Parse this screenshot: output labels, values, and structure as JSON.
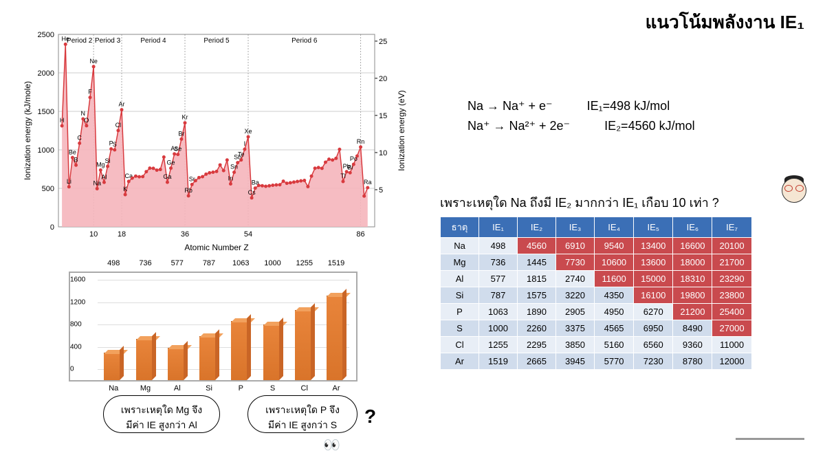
{
  "title": "แนวโน้มพลังงาน IE₁",
  "equations": {
    "row1_left": "Na → Na⁺ + e⁻",
    "row1_right": "IE₁=498 kJ/mol",
    "row2_left": "Na⁺ → Na²⁺ + 2e⁻",
    "row2_right": "IE₂=4560 kJ/mol"
  },
  "question": "เพราะเหตุใด Na ถึงมี IE₂  มากกว่า IE₁ เกือบ 10 เท่า ?",
  "linechart": {
    "type": "line-area",
    "xlabel": "Atomic Number Z",
    "ylabel_left": "Ionization energy (kJ/mole)",
    "ylabel_right": "Ionization energy (eV)",
    "x_ticks": [
      10,
      18,
      36,
      54,
      86
    ],
    "y_ticks_left": [
      0,
      500,
      1000,
      1500,
      2000,
      2500
    ],
    "y_ticks_right": [
      5,
      10,
      15,
      20,
      25
    ],
    "ylim_left": [
      0,
      2500
    ],
    "xlim": [
      0,
      90
    ],
    "period_labels": [
      {
        "text": "Period 2",
        "x": 6
      },
      {
        "text": "Period 3",
        "x": 14
      },
      {
        "text": "Period 4",
        "x": 27
      },
      {
        "text": "Period 5",
        "x": 45
      },
      {
        "text": "Period 6",
        "x": 70
      }
    ],
    "period_dividers": [
      10,
      18,
      36,
      54,
      86
    ],
    "fill_color": "#f5b5bb",
    "line_color": "#d83a3e",
    "marker_color": "#d83a3e",
    "grid_color": "#cccccc",
    "points": [
      {
        "z": 1,
        "ie": 1312,
        "label": "H"
      },
      {
        "z": 2,
        "ie": 2372,
        "label": "He"
      },
      {
        "z": 3,
        "ie": 520,
        "label": "Li"
      },
      {
        "z": 4,
        "ie": 899,
        "label": "Be"
      },
      {
        "z": 5,
        "ie": 801,
        "label": "B"
      },
      {
        "z": 6,
        "ie": 1086,
        "label": "C"
      },
      {
        "z": 7,
        "ie": 1402,
        "label": "N"
      },
      {
        "z": 8,
        "ie": 1314,
        "label": "O"
      },
      {
        "z": 9,
        "ie": 1681,
        "label": "F"
      },
      {
        "z": 10,
        "ie": 2081,
        "label": "Ne"
      },
      {
        "z": 11,
        "ie": 496,
        "label": "Na"
      },
      {
        "z": 12,
        "ie": 738,
        "label": "Mg"
      },
      {
        "z": 13,
        "ie": 578,
        "label": "Al"
      },
      {
        "z": 14,
        "ie": 786,
        "label": "Si"
      },
      {
        "z": 15,
        "ie": 1012,
        "label": "P"
      },
      {
        "z": 16,
        "ie": 1000,
        "label": "S"
      },
      {
        "z": 17,
        "ie": 1251,
        "label": "Cl"
      },
      {
        "z": 18,
        "ie": 1521,
        "label": "Ar"
      },
      {
        "z": 19,
        "ie": 419,
        "label": "K"
      },
      {
        "z": 20,
        "ie": 590,
        "label": "Ca"
      },
      {
        "z": 21,
        "ie": 633
      },
      {
        "z": 22,
        "ie": 659
      },
      {
        "z": 23,
        "ie": 651
      },
      {
        "z": 24,
        "ie": 653
      },
      {
        "z": 25,
        "ie": 717
      },
      {
        "z": 26,
        "ie": 762
      },
      {
        "z": 27,
        "ie": 760
      },
      {
        "z": 28,
        "ie": 737
      },
      {
        "z": 29,
        "ie": 745
      },
      {
        "z": 30,
        "ie": 906
      },
      {
        "z": 31,
        "ie": 579,
        "label": "Ga"
      },
      {
        "z": 32,
        "ie": 762,
        "label": "Ge"
      },
      {
        "z": 33,
        "ie": 947,
        "label": "As"
      },
      {
        "z": 34,
        "ie": 941,
        "label": "Se"
      },
      {
        "z": 35,
        "ie": 1140,
        "label": "Br"
      },
      {
        "z": 36,
        "ie": 1351,
        "label": "Kr"
      },
      {
        "z": 37,
        "ie": 403,
        "label": "Rb"
      },
      {
        "z": 38,
        "ie": 550,
        "label": "Sr"
      },
      {
        "z": 39,
        "ie": 600
      },
      {
        "z": 40,
        "ie": 640
      },
      {
        "z": 41,
        "ie": 652
      },
      {
        "z": 42,
        "ie": 684
      },
      {
        "z": 43,
        "ie": 702
      },
      {
        "z": 44,
        "ie": 710
      },
      {
        "z": 45,
        "ie": 720
      },
      {
        "z": 46,
        "ie": 804
      },
      {
        "z": 47,
        "ie": 731
      },
      {
        "z": 48,
        "ie": 868
      },
      {
        "z": 49,
        "ie": 558,
        "label": "In"
      },
      {
        "z": 50,
        "ie": 709,
        "label": "Sn"
      },
      {
        "z": 51,
        "ie": 834,
        "label": "Sb"
      },
      {
        "z": 52,
        "ie": 869,
        "label": "Te"
      },
      {
        "z": 53,
        "ie": 1008,
        "label": "I"
      },
      {
        "z": 54,
        "ie": 1170,
        "label": "Xe"
      },
      {
        "z": 55,
        "ie": 376,
        "label": "Cs"
      },
      {
        "z": 56,
        "ie": 503,
        "label": "Ba"
      },
      {
        "z": 57,
        "ie": 538
      },
      {
        "z": 58,
        "ie": 534
      },
      {
        "z": 59,
        "ie": 527
      },
      {
        "z": 60,
        "ie": 533
      },
      {
        "z": 61,
        "ie": 540
      },
      {
        "z": 62,
        "ie": 545
      },
      {
        "z": 63,
        "ie": 547
      },
      {
        "z": 64,
        "ie": 593
      },
      {
        "z": 65,
        "ie": 566
      },
      {
        "z": 66,
        "ie": 573
      },
      {
        "z": 67,
        "ie": 581
      },
      {
        "z": 68,
        "ie": 589
      },
      {
        "z": 69,
        "ie": 597
      },
      {
        "z": 70,
        "ie": 603
      },
      {
        "z": 71,
        "ie": 523
      },
      {
        "z": 72,
        "ie": 659
      },
      {
        "z": 73,
        "ie": 761
      },
      {
        "z": 74,
        "ie": 770
      },
      {
        "z": 75,
        "ie": 760
      },
      {
        "z": 76,
        "ie": 839
      },
      {
        "z": 77,
        "ie": 878
      },
      {
        "z": 78,
        "ie": 868
      },
      {
        "z": 79,
        "ie": 890
      },
      {
        "z": 80,
        "ie": 1007
      },
      {
        "z": 81,
        "ie": 589,
        "label": "Tl"
      },
      {
        "z": 82,
        "ie": 716,
        "label": "Pb"
      },
      {
        "z": 83,
        "ie": 703,
        "label": "Bi"
      },
      {
        "z": 84,
        "ie": 812,
        "label": "Po"
      },
      {
        "z": 85,
        "ie": 920
      },
      {
        "z": 86,
        "ie": 1037,
        "label": "Rn"
      },
      {
        "z": 87,
        "ie": 400
      },
      {
        "z": 88,
        "ie": 509,
        "label": "Ra"
      }
    ],
    "labeled_only": [
      "H",
      "He",
      "Li",
      "Be",
      "B",
      "C",
      "N",
      "O",
      "F",
      "Ne",
      "Na",
      "Mg",
      "Al",
      "Si",
      "P",
      "S",
      "Cl",
      "Ar",
      "K",
      "Ca",
      "Ga",
      "Ge",
      "As",
      "Se",
      "Br",
      "Kr",
      "Rb",
      "Sr",
      "In",
      "Sn",
      "Sb",
      "Te",
      "I",
      "Xe",
      "Cs",
      "Ba",
      "Tl",
      "Pb",
      "Bi",
      "Po",
      "Rn",
      "Ra"
    ]
  },
  "barchart": {
    "type": "bar-3d",
    "categories": [
      "Na",
      "Mg",
      "Al",
      "Si",
      "P",
      "S",
      "Cl",
      "Ar"
    ],
    "values": [
      498,
      736,
      577,
      787,
      1063,
      1000,
      1255,
      1519
    ],
    "bar_color": "#e07b2f",
    "ylim": [
      0,
      1600
    ],
    "ytick_step": 400,
    "y_ticks": [
      0,
      400,
      800,
      1200,
      1600
    ]
  },
  "table": {
    "header": [
      "ธาตุ",
      "IE₁",
      "IE₂",
      "IE₃",
      "IE₄",
      "IE₅",
      "IE₆",
      "IE₇"
    ],
    "rows": [
      {
        "el": "Na",
        "v": [
          498,
          4560,
          6910,
          9540,
          13400,
          16600,
          20100
        ],
        "hl_from": 1
      },
      {
        "el": "Mg",
        "v": [
          736,
          1445,
          7730,
          10600,
          13600,
          18000,
          21700
        ],
        "hl_from": 2
      },
      {
        "el": "Al",
        "v": [
          577,
          1815,
          2740,
          11600,
          15000,
          18310,
          23290
        ],
        "hl_from": 3
      },
      {
        "el": "Si",
        "v": [
          787,
          1575,
          3220,
          4350,
          16100,
          19800,
          23800
        ],
        "hl_from": 4
      },
      {
        "el": "P",
        "v": [
          1063,
          1890,
          2905,
          4950,
          6270,
          21200,
          25400
        ],
        "hl_from": 5
      },
      {
        "el": "S",
        "v": [
          1000,
          2260,
          3375,
          4565,
          6950,
          8490,
          27000
        ],
        "hl_from": 6
      },
      {
        "el": "Cl",
        "v": [
          1255,
          2295,
          3850,
          5160,
          6560,
          9360,
          11000
        ],
        "hl_from": 99
      },
      {
        "el": "Ar",
        "v": [
          1519,
          2665,
          3945,
          5770,
          7230,
          8780,
          12000
        ],
        "hl_from": 99
      }
    ],
    "header_bg": "#3b6fb6",
    "highlight_bg": "#c94a4e",
    "row_odd_bg": "#e8eef6",
    "row_even_bg": "#d0dcec"
  },
  "bubbles": {
    "b1_l1": "เพราะเหตุใด Mg จึง",
    "b1_l2": "มีค่า IE สูงกว่า Al",
    "b2_l1": "เพราะเหตุใด P จึง",
    "b2_l2": "มีค่า IE สูงกว่า S"
  }
}
